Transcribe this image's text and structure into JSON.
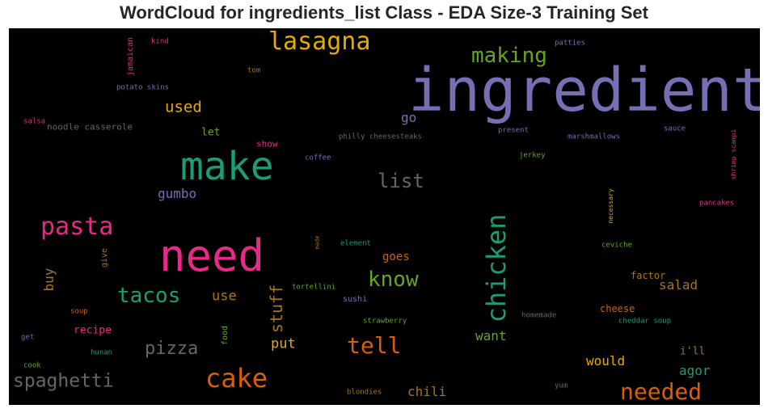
{
  "chart_data": {
    "type": "wordcloud",
    "title": "WordCloud for ingredients_list Class - EDA Size-3 Training Set",
    "background": "#000000",
    "colors": {
      "purple": "#7570b3",
      "green": "#1b9e77",
      "pink": "#e7298a",
      "orange": "#d95f02",
      "lime": "#66a61e",
      "gold": "#e6ab02",
      "brown": "#a6761d",
      "gray": "#666666"
    },
    "words": [
      {
        "text": "ingredient",
        "weight": 1.0,
        "color": "purple"
      },
      {
        "text": "need",
        "weight": 0.8,
        "color": "pink"
      },
      {
        "text": "make",
        "weight": 0.75,
        "color": "green"
      },
      {
        "text": "chicken",
        "weight": 0.5,
        "color": "green",
        "vertical": true
      },
      {
        "text": "lasagna",
        "weight": 0.5,
        "color": "gold"
      },
      {
        "text": "cake",
        "weight": 0.5,
        "color": "orange"
      },
      {
        "text": "pasta",
        "weight": 0.5,
        "color": "pink"
      },
      {
        "text": "tell",
        "weight": 0.45,
        "color": "orange"
      },
      {
        "text": "needed",
        "weight": 0.45,
        "color": "orange"
      },
      {
        "text": "making",
        "weight": 0.45,
        "color": "lime"
      },
      {
        "text": "know",
        "weight": 0.45,
        "color": "lime"
      },
      {
        "text": "tacos",
        "weight": 0.45,
        "color": "green"
      },
      {
        "text": "spaghetti",
        "weight": 0.4,
        "color": "gray"
      },
      {
        "text": "list",
        "weight": 0.4,
        "color": "gray"
      },
      {
        "text": "pizza",
        "weight": 0.4,
        "color": "gray"
      },
      {
        "text": "stuff",
        "weight": 0.3,
        "color": "brown",
        "vertical": true
      },
      {
        "text": "used",
        "weight": 0.3,
        "color": "gold"
      },
      {
        "text": "gumbo",
        "weight": 0.25,
        "color": "purple"
      },
      {
        "text": "use",
        "weight": 0.25,
        "color": "brown"
      },
      {
        "text": "put",
        "weight": 0.25,
        "color": "gold"
      },
      {
        "text": "want",
        "weight": 0.25,
        "color": "lime"
      },
      {
        "text": "would",
        "weight": 0.25,
        "color": "gold"
      },
      {
        "text": "agor",
        "weight": 0.25,
        "color": "green"
      },
      {
        "text": "salad",
        "weight": 0.25,
        "color": "brown"
      },
      {
        "text": "chili",
        "weight": 0.25,
        "color": "brown"
      },
      {
        "text": "buy",
        "weight": 0.25,
        "color": "brown",
        "vertical": true
      },
      {
        "text": "go",
        "weight": 0.25,
        "color": "purple"
      },
      {
        "text": "goes",
        "weight": 0.2,
        "color": "orange"
      },
      {
        "text": "recipe",
        "weight": 0.2,
        "color": "pink"
      },
      {
        "text": "let",
        "weight": 0.18,
        "color": "lime"
      },
      {
        "text": "i'll",
        "weight": 0.18,
        "color": "brown"
      },
      {
        "text": "cheese",
        "weight": 0.15,
        "color": "orange"
      },
      {
        "text": "factor",
        "weight": 0.15,
        "color": "brown"
      },
      {
        "text": "show",
        "weight": 0.15,
        "color": "pink"
      },
      {
        "text": "sushi",
        "weight": 0.15,
        "color": "purple"
      },
      {
        "text": "noodle casserole",
        "weight": 0.15,
        "color": "gray"
      },
      {
        "text": "food",
        "weight": 0.12,
        "color": "lime",
        "vertical": true
      },
      {
        "text": "give",
        "weight": 0.12,
        "color": "brown",
        "vertical": true
      },
      {
        "text": "jamaican",
        "weight": 0.12,
        "color": "pink",
        "vertical": true
      },
      {
        "text": "necessary",
        "weight": 0.1,
        "color": "gold",
        "vertical": true
      },
      {
        "text": "shrimp scampi",
        "weight": 0.1,
        "color": "pink",
        "vertical": true
      },
      {
        "text": "made",
        "weight": 0.1,
        "color": "brown",
        "vertical": true
      },
      {
        "text": "philly cheesesteaks",
        "weight": 0.1,
        "color": "gray"
      },
      {
        "text": "marshmallows",
        "weight": 0.1,
        "color": "purple"
      },
      {
        "text": "present",
        "weight": 0.1,
        "color": "purple"
      },
      {
        "text": "sauce",
        "weight": 0.1,
        "color": "purple"
      },
      {
        "text": "jerkey",
        "weight": 0.1,
        "color": "lime"
      },
      {
        "text": "coffee",
        "weight": 0.1,
        "color": "purple"
      },
      {
        "text": "pancakes",
        "weight": 0.1,
        "color": "pink"
      },
      {
        "text": "ceviche",
        "weight": 0.1,
        "color": "lime"
      },
      {
        "text": "element",
        "weight": 0.1,
        "color": "green"
      },
      {
        "text": "tortellini",
        "weight": 0.1,
        "color": "lime"
      },
      {
        "text": "strawberry",
        "weight": 0.1,
        "color": "lime"
      },
      {
        "text": "homemade",
        "weight": 0.1,
        "color": "gray"
      },
      {
        "text": "cheddar soup",
        "weight": 0.1,
        "color": "green"
      },
      {
        "text": "potato skins",
        "weight": 0.1,
        "color": "purple"
      },
      {
        "text": "salsa",
        "weight": 0.1,
        "color": "pink"
      },
      {
        "text": "kind",
        "weight": 0.1,
        "color": "pink"
      },
      {
        "text": "tom",
        "weight": 0.1,
        "color": "brown"
      },
      {
        "text": "patties",
        "weight": 0.1,
        "color": "purple"
      },
      {
        "text": "soup",
        "weight": 0.1,
        "color": "orange"
      },
      {
        "text": "get",
        "weight": 0.1,
        "color": "purple"
      },
      {
        "text": "cook",
        "weight": 0.1,
        "color": "lime"
      },
      {
        "text": "hunan",
        "weight": 0.1,
        "color": "green"
      },
      {
        "text": "blondies",
        "weight": 0.1,
        "color": "brown"
      },
      {
        "text": "yum",
        "weight": 0.1,
        "color": "gray"
      }
    ]
  }
}
